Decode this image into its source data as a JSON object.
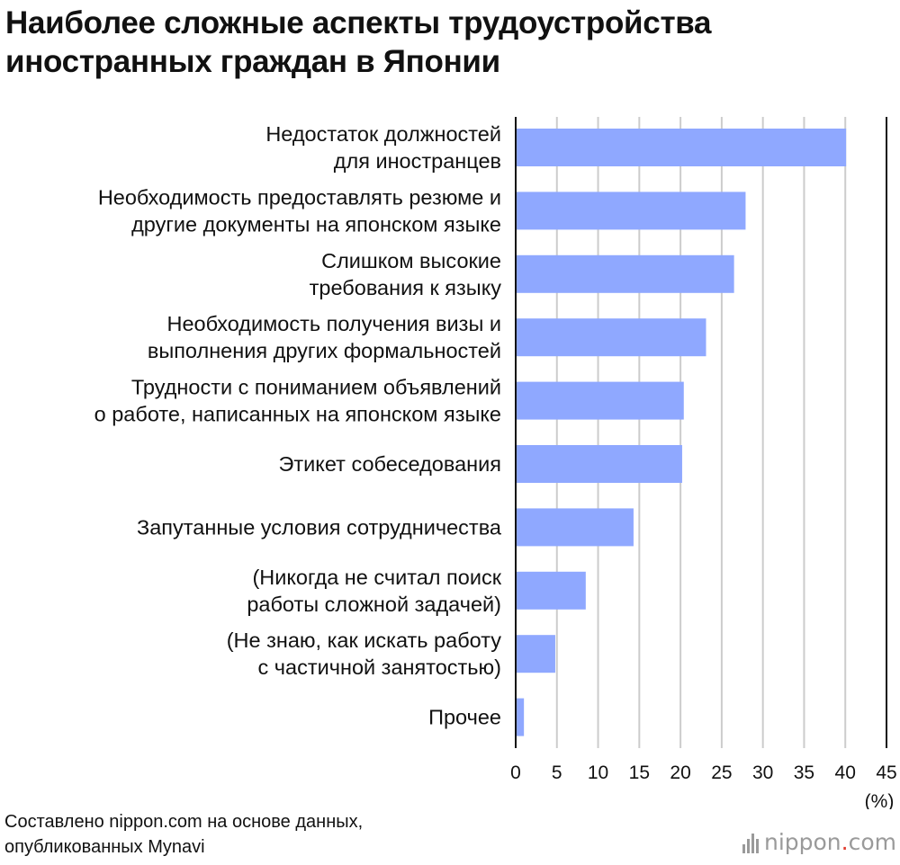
{
  "title_lines": [
    "Наиболее сложные аспекты трудоустройства",
    "иностранных граждан в Японии"
  ],
  "source_lines": [
    "Составлено nippon.com на основе данных,",
    "опубликованных Mynavi"
  ],
  "brand": {
    "name": "nippon",
    "dot": ".",
    "tld": "com"
  },
  "colors": {
    "bar": "#8fa8ff",
    "grid": "#cccccc",
    "axis": "#111111",
    "text": "#111111"
  },
  "chart_data": {
    "type": "bar",
    "orientation": "horizontal",
    "title": "Наиболее сложные аспекты трудоустройства иностранных граждан в Японии",
    "xlabel": "(%)",
    "ylabel": "",
    "xlim": [
      0,
      45
    ],
    "xticks": [
      0,
      5,
      10,
      15,
      20,
      25,
      30,
      35,
      40,
      45
    ],
    "grid": true,
    "categories": [
      [
        "Недостаток должностей",
        "для иностранцев"
      ],
      [
        "Необходимость предоставлять резюме и",
        "другие документы на японском языке"
      ],
      [
        "Слишком высокие",
        "требования к языку"
      ],
      [
        "Необходимость получения визы и",
        "выполнения других формальностей"
      ],
      [
        "Трудности с пониманием объявлений",
        "о работе, написанных на японском языке"
      ],
      [
        "Этикет собеседования"
      ],
      [
        "Запутанные условия сотрудничества"
      ],
      [
        "(Никогда не считал поиск",
        "работы сложной задачей)"
      ],
      [
        "(Не знаю, как искать работу",
        "с частичной занятостью)"
      ],
      [
        "Прочее"
      ]
    ],
    "values": [
      40.1,
      27.9,
      26.5,
      23.1,
      20.4,
      20.2,
      14.3,
      8.5,
      4.8,
      1.0
    ]
  }
}
